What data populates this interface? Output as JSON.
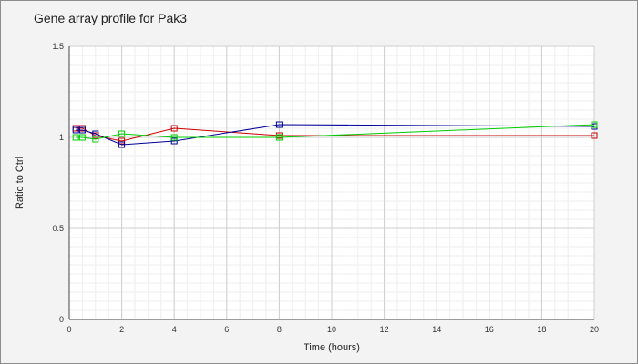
{
  "chart_data": {
    "type": "line",
    "title": "Gene array profile for Pak3",
    "xlabel": "Time (hours)",
    "ylabel": "Ratio to Ctrl",
    "xlim": [
      0,
      20
    ],
    "ylim": [
      0,
      1.5
    ],
    "x_ticks": [
      0,
      2,
      4,
      6,
      8,
      10,
      12,
      14,
      16,
      18,
      20
    ],
    "y_ticks": [
      0,
      0.5,
      1,
      1.5
    ],
    "y_tick_labels": [
      "0",
      "0.5",
      "1",
      "1.5"
    ],
    "grid": true,
    "legend": "none",
    "marker": "square",
    "series": [
      {
        "color": "#cc0000",
        "x": [
          0.25,
          0.5,
          1,
          2,
          4,
          8,
          20
        ],
        "y": [
          1.05,
          1.05,
          1.01,
          0.98,
          1.05,
          1.01,
          1.01
        ]
      },
      {
        "color": "#000099",
        "x": [
          0.25,
          0.5,
          1,
          2,
          4,
          8,
          20
        ],
        "y": [
          1.04,
          1.04,
          1.02,
          0.96,
          0.98,
          1.07,
          1.06
        ]
      },
      {
        "color": "#00cc00",
        "x": [
          0.25,
          0.5,
          1,
          2,
          4,
          8,
          20
        ],
        "y": [
          1.0,
          1.0,
          0.99,
          1.02,
          1.0,
          1.0,
          1.07
        ]
      }
    ]
  }
}
